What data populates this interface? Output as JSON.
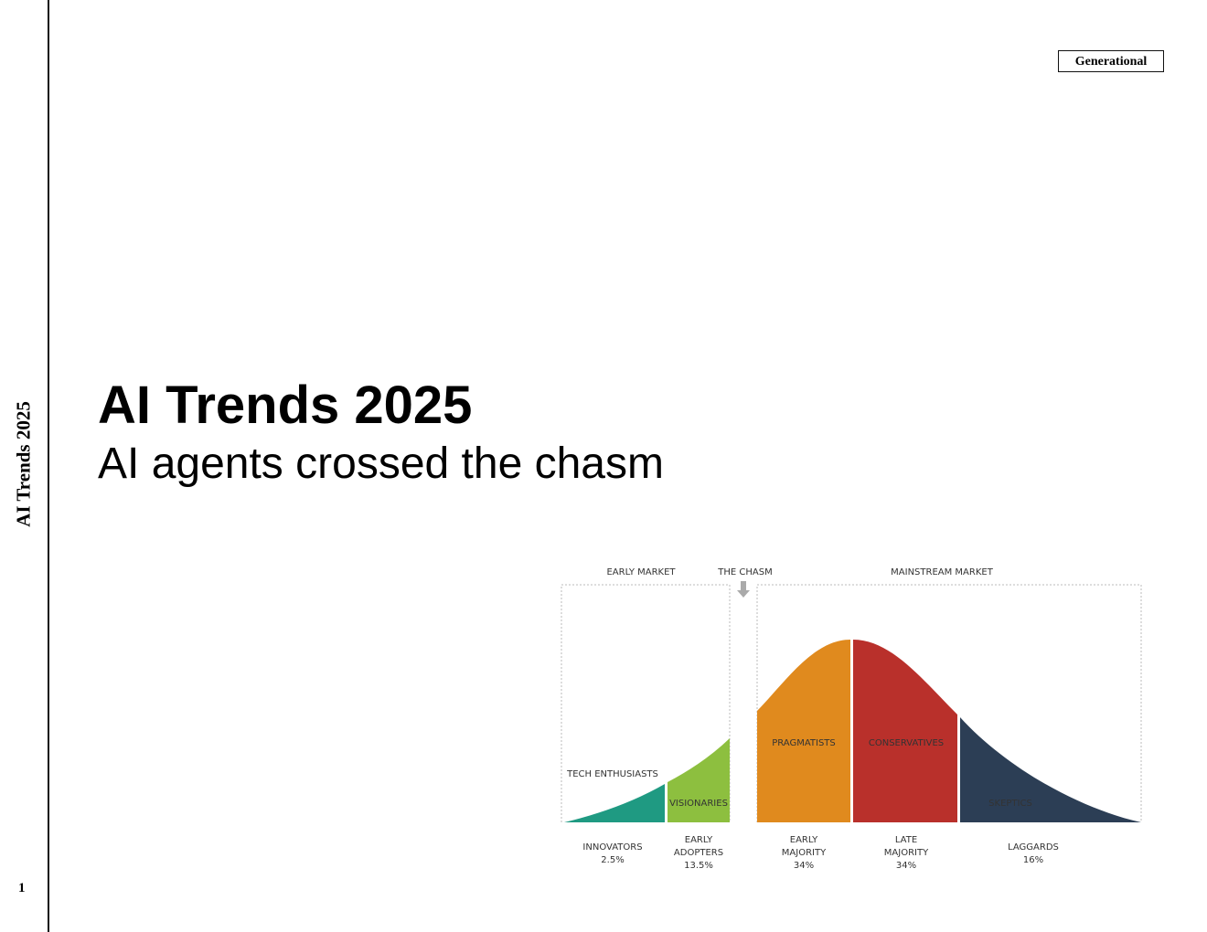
{
  "sidebar": {
    "title": "AI Trends 2025",
    "page_number": "1"
  },
  "tag": "Generational",
  "header": {
    "title": "AI Trends 2025",
    "subtitle": "AI agents crossed the chasm"
  },
  "diagram": {
    "markets": [
      "EARLY MARKET",
      "THE CHASM",
      "MAINSTREAM MARKET"
    ],
    "segments": [
      {
        "label": "TECH ENTHUSIASTS",
        "group": [
          "INNOVATORS"
        ],
        "share": "2.5%"
      },
      {
        "label": "VISIONARIES",
        "group": [
          "EARLY",
          "ADOPTERS"
        ],
        "share": "13.5%"
      },
      {
        "label": "PRAGMATISTS",
        "group": [
          "EARLY",
          "MAJORITY"
        ],
        "share": "34%"
      },
      {
        "label": "CONSERVATIVES",
        "group": [
          "LATE",
          "MAJORITY"
        ],
        "share": "34%"
      },
      {
        "label": "SKEPTICS",
        "group": [
          "LAGGARDS"
        ],
        "share": "16%"
      }
    ]
  }
}
